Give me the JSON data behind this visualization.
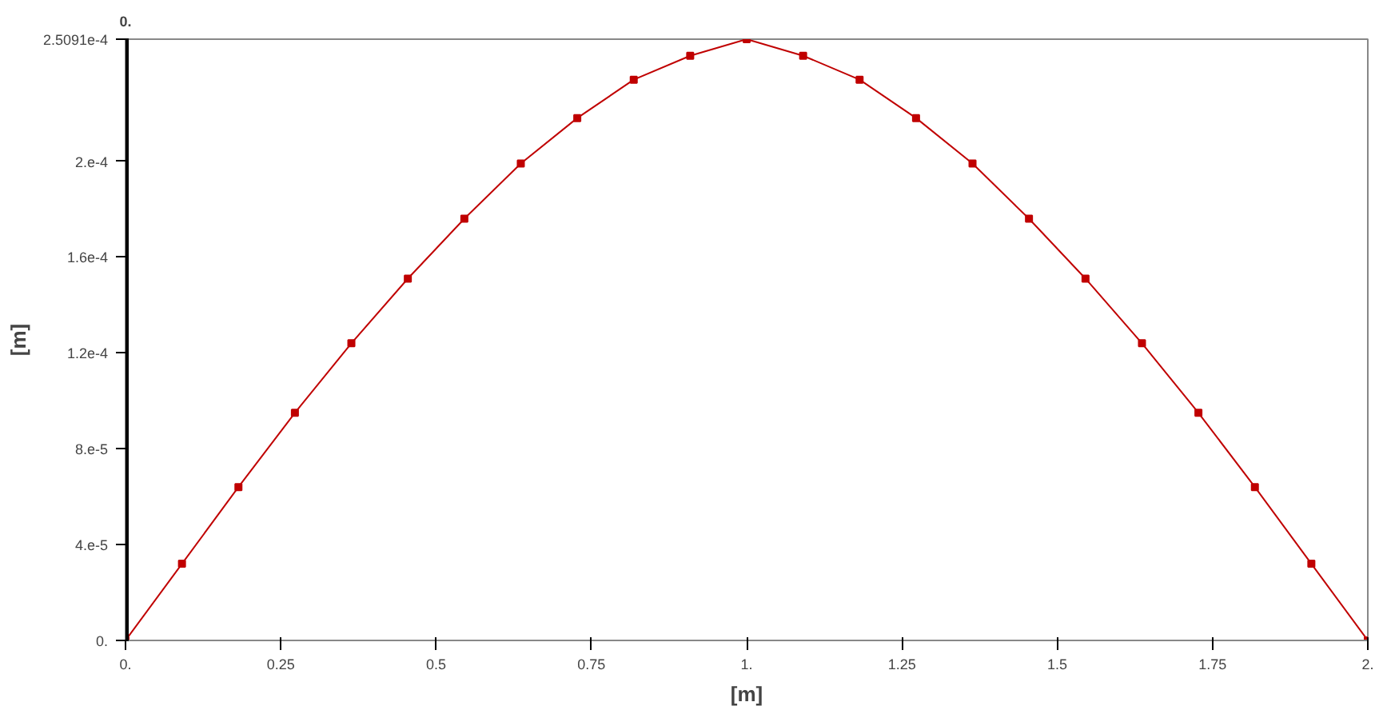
{
  "chart_data": {
    "type": "line",
    "xlabel": "[m]",
    "ylabel": "[m]",
    "x": [
      0,
      0.0909,
      0.1818,
      0.2727,
      0.3636,
      0.4545,
      0.5455,
      0.6364,
      0.7273,
      0.8182,
      0.9091,
      1,
      1.0909,
      1.1818,
      1.2727,
      1.3636,
      1.4545,
      1.5455,
      1.6364,
      1.7273,
      1.8182,
      1.9091,
      2
    ],
    "series": [
      {
        "color": "#c00000",
        "values": [
          0,
          3.2e-05,
          6.4e-05,
          9.5e-05,
          0.000124,
          0.000151,
          0.000176,
          0.000199,
          0.000218,
          0.000234,
          0.000244,
          0.00025091,
          0.000244,
          0.000234,
          0.000218,
          0.000199,
          0.000176,
          0.000151,
          0.000124,
          9.5e-05,
          6.4e-05,
          3.2e-05,
          0
        ]
      }
    ],
    "xlim": [
      0,
      2
    ],
    "ylim": [
      0,
      0.00025091
    ],
    "xticks": [
      {
        "value": 0,
        "label": "0."
      },
      0.25,
      0.5,
      0.75,
      {
        "value": 1,
        "label": "1."
      },
      1.25,
      1.5,
      1.75,
      {
        "value": 2,
        "label": "2."
      }
    ],
    "yticks": [
      {
        "value": 0,
        "label": "0."
      },
      {
        "value": 4e-05,
        "label": "4.e-5"
      },
      {
        "value": 8e-05,
        "label": "8.e-5"
      },
      {
        "value": 0.00012,
        "label": "1.2e-4"
      },
      {
        "value": 0.00016,
        "label": "1.6e-4"
      },
      {
        "value": 0.0002,
        "label": "2.e-4"
      },
      {
        "value": 0.00025091,
        "label": "2.5091e-4"
      }
    ],
    "ref_lines": [
      {
        "axis": "x",
        "value": 0,
        "label": "0.",
        "color": "#000000"
      }
    ],
    "grid": false,
    "marker": "square",
    "line_style": "solid"
  }
}
